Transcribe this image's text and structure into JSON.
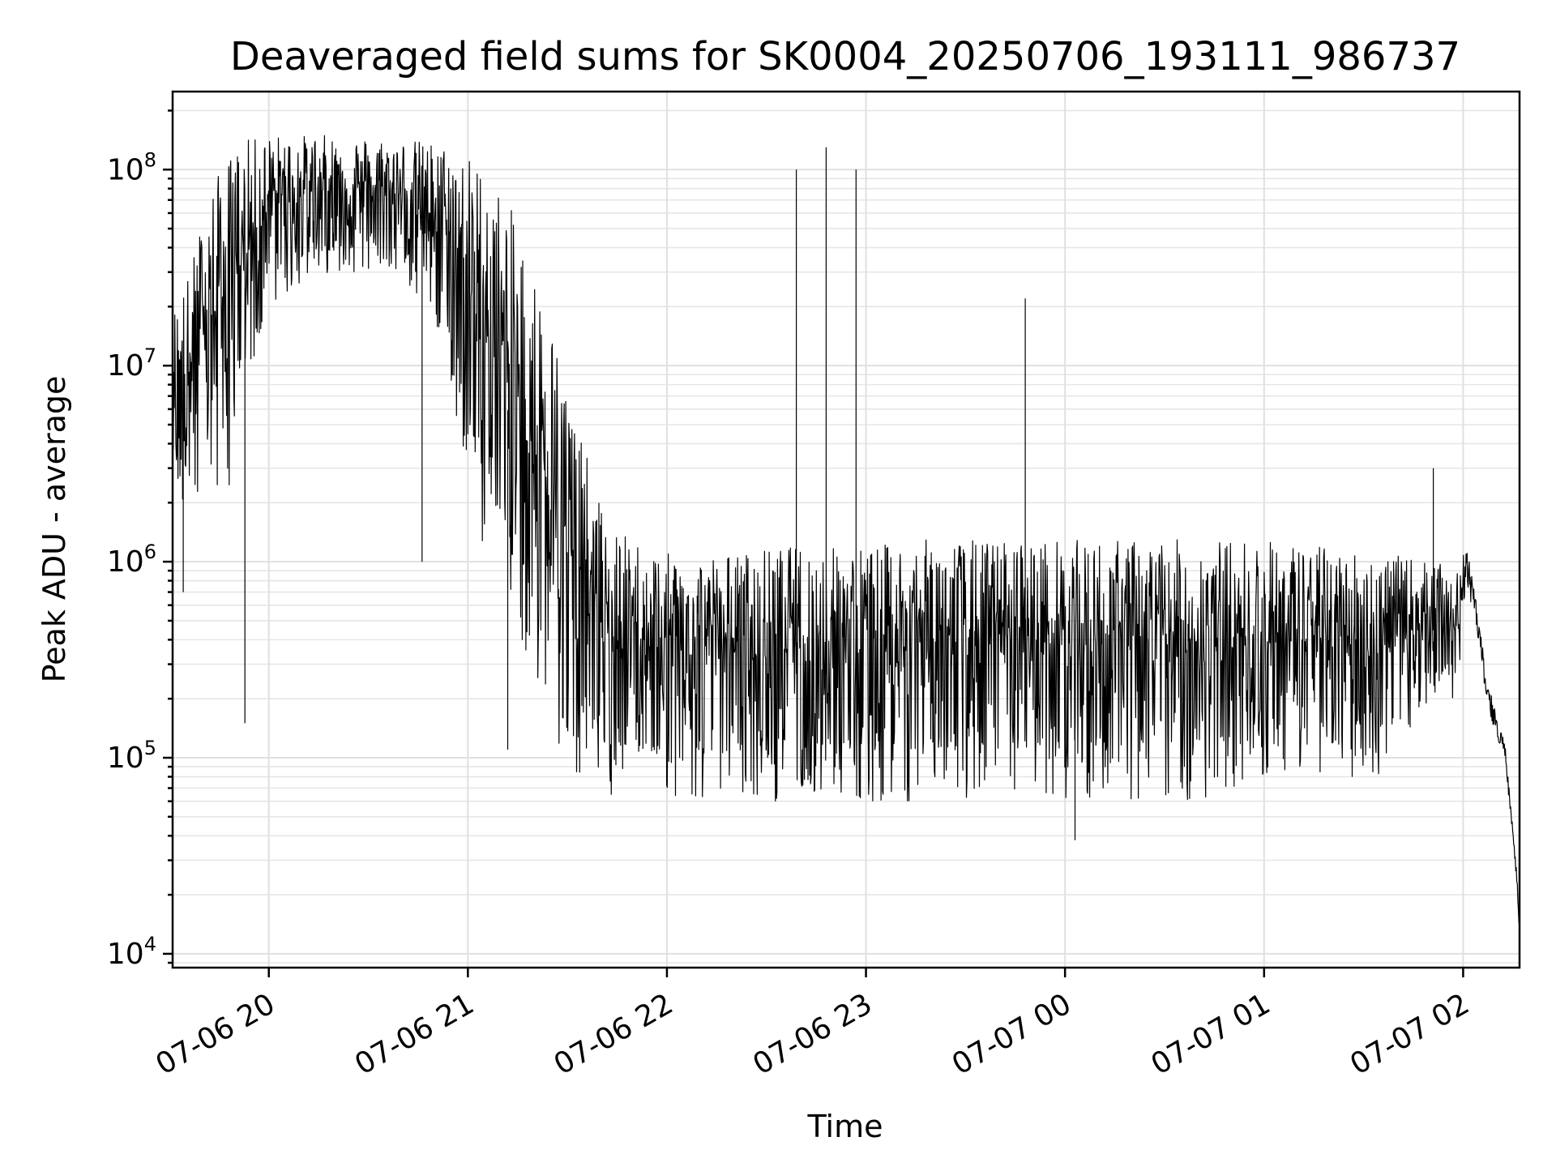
{
  "chart_data": {
    "type": "line",
    "title": "Deaveraged field sums for SK0004_20250706_193111_986737",
    "xlabel": "Time",
    "ylabel": "Peak ADU - average",
    "yscale": "log",
    "grid": true,
    "grid_minor_y": true,
    "xlim": [
      "2025-07-06 19:31",
      "2025-07-07 02:17"
    ],
    "ylim": [
      8500,
      250000000
    ],
    "x_ticks": [
      "07-06 20",
      "07-06 21",
      "07-06 22",
      "07-06 23",
      "07-07 00",
      "07-07 01",
      "07-07 02"
    ],
    "y_ticks": [
      {
        "value": 10000,
        "base": "10",
        "exp": "4"
      },
      {
        "value": 100000,
        "base": "10",
        "exp": "5"
      },
      {
        "value": 1000000,
        "base": "10",
        "exp": "6"
      },
      {
        "value": 10000000,
        "base": "10",
        "exp": "7"
      },
      {
        "value": 100000000,
        "base": "10",
        "exp": "8"
      }
    ],
    "series": [
      {
        "color": "#000000",
        "envelope_by_hour": {
          "x_hours_since_2025-07-06_00:00": [
            19.52,
            19.6,
            19.7,
            19.85,
            20.0,
            20.3,
            20.6,
            20.8,
            20.95,
            21.05,
            21.2,
            21.4,
            21.55,
            21.7,
            22.0,
            22.3,
            22.6,
            23.0,
            23.3,
            23.7,
            24.0,
            24.3,
            24.7,
            25.0,
            25.3,
            25.6,
            25.85,
            25.97,
            26.02,
            26.06,
            26.12,
            26.17,
            26.21,
            26.27,
            26.28
          ],
          "upper": [
            20000000,
            30000000,
            80000000,
            140000000,
            150000000,
            150000000,
            145000000,
            140000000,
            130000000,
            110000000,
            70000000,
            20000000,
            5000000,
            1500000,
            1100000,
            1100000,
            1200000,
            1200000,
            1300000,
            1300000,
            1300000,
            1300000,
            1300000,
            1300000,
            1200000,
            1100000,
            1000000,
            900000,
            1200000,
            900000,
            400000,
            200000,
            150000,
            30000,
            15000
          ],
          "lower": [
            1500000,
            1500000,
            1500000,
            3000000,
            20000000,
            30000000,
            30000000,
            20000000,
            5000000,
            1500000,
            500000,
            150000,
            80000,
            60000,
            60000,
            60000,
            60000,
            60000,
            60000,
            60000,
            60000,
            60000,
            60000,
            80000,
            80000,
            80000,
            200000,
            200000,
            800000,
            400000,
            120000,
            100000,
            80000,
            20000,
            14000
          ]
        },
        "spikes": [
          {
            "x": 19.88,
            "y": 150000
          },
          {
            "x": 19.57,
            "y": 700000
          },
          {
            "x": 20.77,
            "y": 1000000
          },
          {
            "x": 21.2,
            "y": 110000
          },
          {
            "x": 22.8,
            "y": 130000000
          },
          {
            "x": 22.65,
            "y": 100000000
          },
          {
            "x": 22.95,
            "y": 100000000
          },
          {
            "x": 23.8,
            "y": 22000000
          },
          {
            "x": 25.85,
            "y": 3000000
          },
          {
            "x": 24.05,
            "y": 38000
          }
        ]
      }
    ]
  }
}
